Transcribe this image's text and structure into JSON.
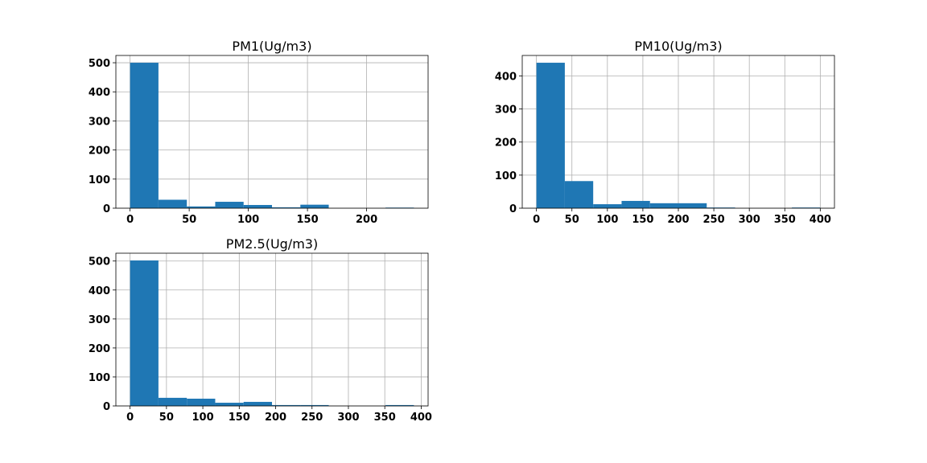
{
  "chart_data": [
    {
      "type": "bar",
      "subtype": "histogram",
      "title": "PM1(Ug/m3)",
      "xlabel": "",
      "ylabel": "",
      "grid": true,
      "bin_edges": [
        0,
        24,
        48,
        72,
        96,
        120,
        144,
        168,
        192,
        216,
        240
      ],
      "counts": [
        500,
        29,
        6,
        22,
        11,
        3,
        12,
        0,
        0,
        2
      ],
      "xlim": [
        -12,
        252
      ],
      "ylim": [
        0,
        525
      ],
      "xticks": [
        0,
        50,
        100,
        150,
        200
      ],
      "yticks": [
        0,
        100,
        200,
        300,
        400,
        500
      ],
      "color": "#1f77b4"
    },
    {
      "type": "bar",
      "subtype": "histogram",
      "title": "PM10(Ug/m3)",
      "xlabel": "",
      "ylabel": "",
      "grid": true,
      "bin_edges": [
        0,
        40,
        80,
        120,
        160,
        200,
        240,
        280,
        320,
        360,
        400
      ],
      "counts": [
        440,
        82,
        12,
        22,
        15,
        15,
        2,
        0,
        0,
        2
      ],
      "xlim": [
        -20,
        420
      ],
      "ylim": [
        0,
        462
      ],
      "xticks": [
        0,
        50,
        100,
        150,
        200,
        250,
        300,
        350,
        400
      ],
      "yticks": [
        0,
        100,
        200,
        300,
        400
      ],
      "color": "#1f77b4"
    },
    {
      "type": "bar",
      "subtype": "histogram",
      "title": "PM2.5(Ug/m3)",
      "xlabel": "",
      "ylabel": "",
      "grid": true,
      "bin_edges": [
        0,
        39,
        78,
        117,
        156,
        195,
        234,
        273,
        312,
        351,
        390
      ],
      "counts": [
        502,
        28,
        25,
        11,
        14,
        3,
        3,
        0,
        0,
        3
      ],
      "xlim": [
        -19.5,
        409.5
      ],
      "ylim": [
        0,
        527
      ],
      "xticks": [
        0,
        50,
        100,
        150,
        200,
        250,
        300,
        350,
        400
      ],
      "yticks": [
        0,
        100,
        200,
        300,
        400,
        500
      ],
      "color": "#1f77b4"
    }
  ]
}
